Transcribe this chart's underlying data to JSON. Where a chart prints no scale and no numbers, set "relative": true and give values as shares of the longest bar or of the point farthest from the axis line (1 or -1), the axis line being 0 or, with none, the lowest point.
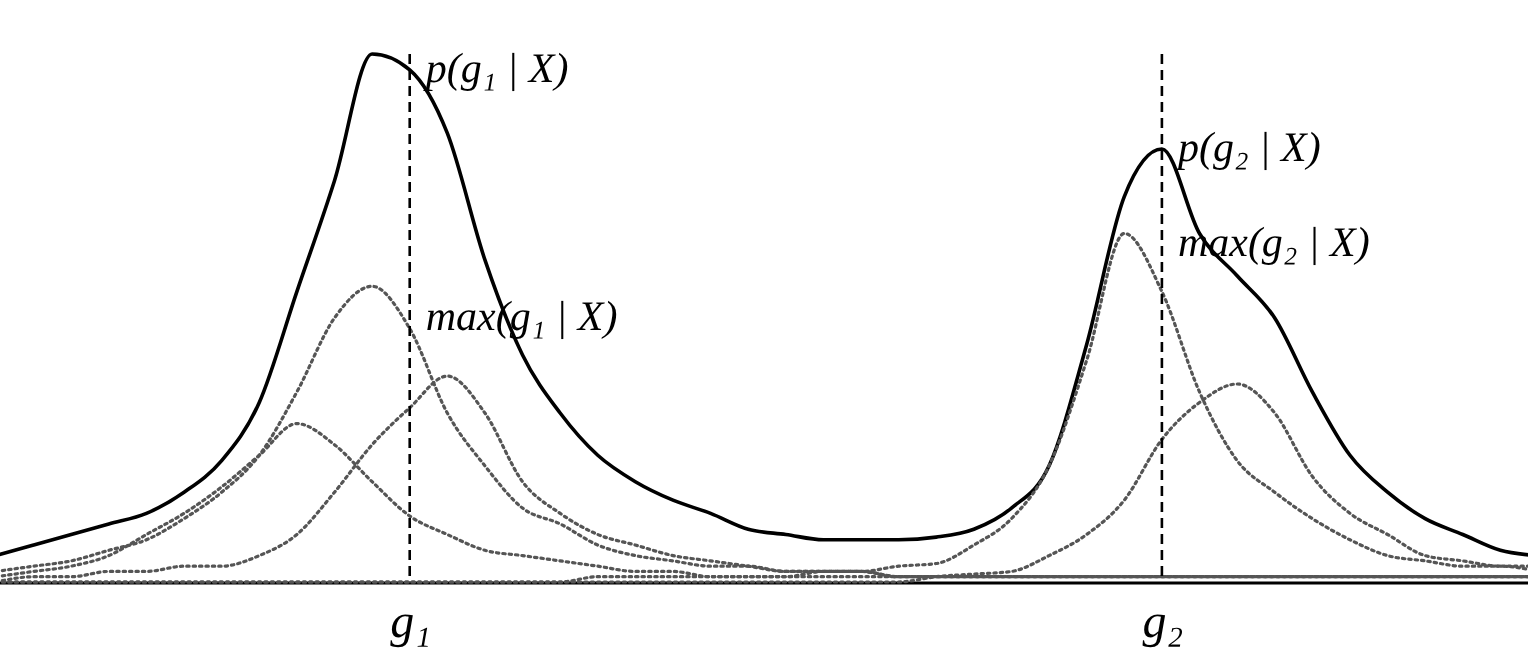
{
  "chart_data": {
    "type": "line",
    "relative": true,
    "categories": [
      null,
      null,
      null,
      null,
      null,
      null,
      null,
      null,
      null,
      null,
      null,
      "g₁",
      null,
      null,
      null,
      null,
      null,
      null,
      null,
      null,
      null,
      null,
      null,
      null,
      null,
      null,
      null,
      null,
      null,
      null,
      null,
      "g₂",
      null,
      null,
      null,
      null,
      null,
      null,
      null,
      null,
      null,
      null
    ],
    "series": [
      {
        "color": "#000000",
        "line_style": "solid",
        "values": [
          0.05,
          0.07,
          0.09,
          0.11,
          0.13,
          0.17,
          0.23,
          0.34,
          0.55,
          0.76,
          1.0,
          0.97,
          0.85,
          0.61,
          0.43,
          0.32,
          0.24,
          0.19,
          0.155,
          0.13,
          0.1,
          0.09,
          0.08,
          0.08,
          0.08,
          0.085,
          0.1,
          0.14,
          0.22,
          0.45,
          0.73,
          0.82,
          0.66,
          0.58,
          0.5,
          0.36,
          0.24,
          0.17,
          0.12,
          0.09,
          0.06,
          0.05
        ]
      },
      {
        "color": "#555555",
        "line_style": "dotted",
        "values": [
          0.01,
          0.02,
          0.03,
          0.05,
          0.09,
          0.13,
          0.18,
          0.24,
          0.3,
          0.26,
          0.19,
          0.125,
          0.09,
          0.06,
          0.05,
          0.04,
          0.03,
          0.02,
          0.02,
          0.01,
          0.01,
          0.01,
          0.01,
          0.01,
          0.01,
          0.01,
          0.01,
          0.01,
          0.01,
          0.01,
          0.01,
          0.01,
          0.01,
          0.01,
          0.01,
          0.01,
          0.01,
          0.01,
          0.01,
          0.01,
          0.01,
          0.01
        ]
      },
      {
        "color": "#555555",
        "line_style": "dotted",
        "values": [
          0.02,
          0.03,
          0.04,
          0.06,
          0.08,
          0.12,
          0.17,
          0.24,
          0.36,
          0.5,
          0.56,
          0.48,
          0.32,
          0.22,
          0.14,
          0.11,
          0.07,
          0.05,
          0.04,
          0.03,
          0.03,
          0.02,
          0.02,
          0.02,
          0.01,
          0.01,
          0.01,
          0.01,
          0.01,
          0.01,
          0.01,
          0.01,
          0.01,
          0.01,
          0.01,
          0.01,
          0.01,
          0.01,
          0.01,
          0.01,
          0.01,
          0.01
        ]
      },
      {
        "color": "#555555",
        "line_style": "dotted",
        "values": [
          0.0,
          0.01,
          0.01,
          0.02,
          0.02,
          0.03,
          0.03,
          0.05,
          0.09,
          0.17,
          0.26,
          0.33,
          0.39,
          0.32,
          0.19,
          0.13,
          0.09,
          0.07,
          0.05,
          0.04,
          0.03,
          0.02,
          0.02,
          0.02,
          0.01,
          0.01,
          0.01,
          0.01,
          0.01,
          0.01,
          0.01,
          0.01,
          0.01,
          0.01,
          0.01,
          0.01,
          0.01,
          0.01,
          0.01,
          0.01,
          0.01,
          0.01
        ]
      },
      {
        "color": "#555555",
        "line_style": "dotted",
        "values": [
          0.0,
          0.0,
          0.0,
          0.0,
          0.0,
          0.0,
          0.0,
          0.0,
          0.0,
          0.0,
          0.0,
          0.0,
          0.0,
          0.0,
          0.0,
          0.0,
          0.01,
          0.01,
          0.01,
          0.01,
          0.01,
          0.01,
          0.02,
          0.02,
          0.03,
          0.035,
          0.07,
          0.12,
          0.22,
          0.42,
          0.66,
          0.55,
          0.36,
          0.23,
          0.17,
          0.12,
          0.08,
          0.05,
          0.04,
          0.03,
          0.03,
          0.02
        ]
      },
      {
        "color": "#555555",
        "line_style": "dotted",
        "values": [
          0.0,
          0.0,
          0.0,
          0.0,
          0.0,
          0.0,
          0.0,
          0.0,
          0.0,
          0.0,
          0.0,
          0.0,
          0.0,
          0.0,
          0.0,
          0.0,
          0.0,
          0.0,
          0.0,
          0.0,
          0.0,
          0.0,
          0.0,
          0.0,
          0.0,
          0.01,
          0.015,
          0.02,
          0.05,
          0.09,
          0.155,
          0.27,
          0.34,
          0.375,
          0.32,
          0.2,
          0.13,
          0.09,
          0.05,
          0.04,
          0.03,
          0.03
        ]
      }
    ],
    "ref_lines": [
      {
        "axis": "x",
        "value": "g₁",
        "line_style": "dashed",
        "color": "#000000"
      },
      {
        "axis": "x",
        "value": "g₂",
        "line_style": "dashed",
        "color": "#000000"
      }
    ],
    "annotations": [
      {
        "text": "p(g₁ | X)",
        "x": "g₁",
        "y": 0.97
      },
      {
        "text": "max(g₁ | X)",
        "x": "g₁",
        "y": 0.5
      },
      {
        "text": "p(g₂ | X)",
        "x": "g₂",
        "y": 0.82
      },
      {
        "text": "max(g₂ | X)",
        "x": "g₂",
        "y": 0.64
      }
    ]
  }
}
